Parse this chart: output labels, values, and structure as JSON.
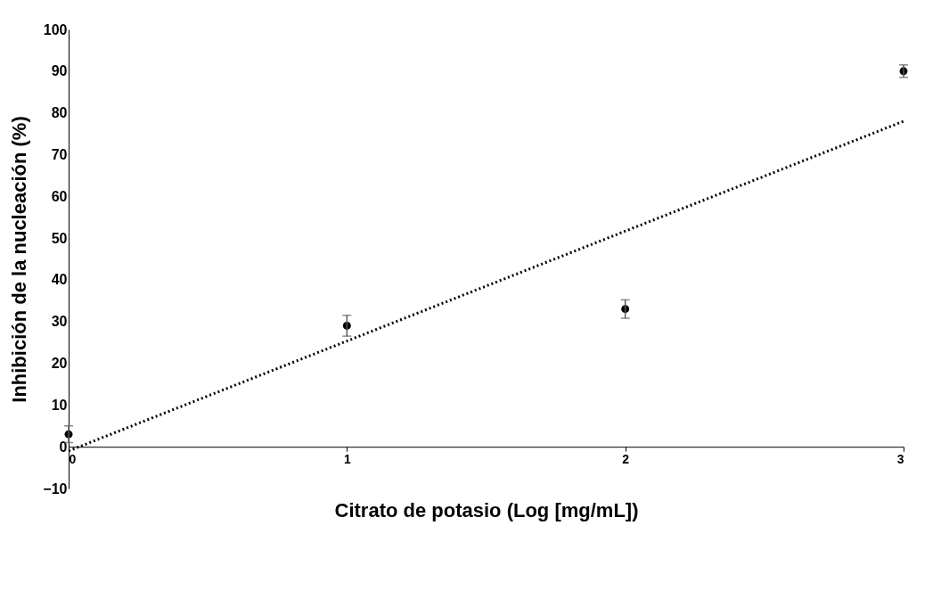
{
  "chart_data": {
    "type": "scatter",
    "xlabel": "Citrato de potasio (Log [mg/mL])",
    "ylabel": "Inhibición de la nucleación (%)",
    "xlim": [
      0,
      3
    ],
    "xticks": [
      0,
      1,
      2,
      3
    ],
    "ylim": [
      -10,
      100
    ],
    "yticks": [
      -10,
      0,
      10,
      20,
      30,
      40,
      50,
      60,
      70,
      80,
      90,
      100
    ],
    "grid": false,
    "series": [
      {
        "type": "scatter",
        "marker": "circle",
        "color": "#000000",
        "x": [
          0,
          1,
          2,
          3
        ],
        "values": [
          3,
          29,
          33,
          90
        ],
        "errors": [
          2,
          2.5,
          2.2,
          1.5
        ]
      },
      {
        "type": "line",
        "marker": "none",
        "color": "#000000",
        "line_style": "dotted",
        "x": [
          0,
          3
        ],
        "values": [
          -1,
          78
        ]
      }
    ]
  }
}
